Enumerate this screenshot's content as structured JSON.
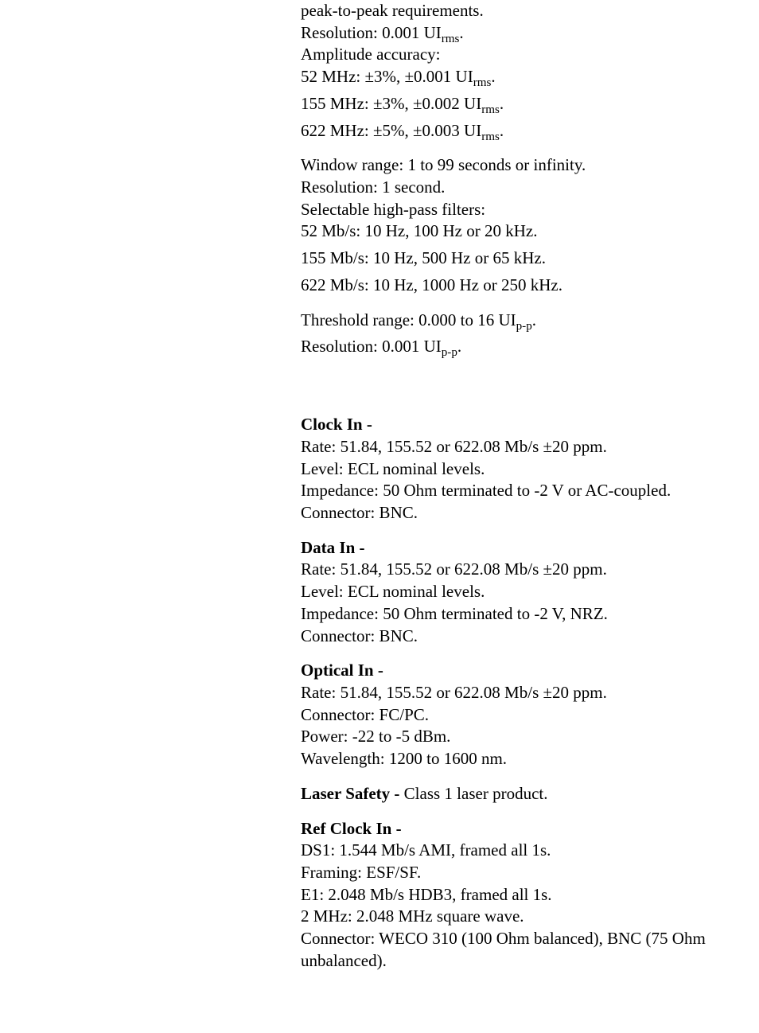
{
  "block1": {
    "l1": "peak-to-peak requirements.",
    "l2a": "Resolution: 0.001 UI",
    "l2sub": "rms",
    "l2b": ".",
    "l3": "Amplitude accuracy:",
    "l4a": "52 MHz: ±3%, ±0.001 UI",
    "l4sub": "rms",
    "l4b": ".",
    "l5a": "155 MHz: ±3%, ±0.002 UI",
    "l5sub": "rms",
    "l5b": ".",
    "l6a": "622 MHz: ±5%, ±0.003 UI",
    "l6sub": "rms",
    "l6b": "."
  },
  "block2": {
    "l1": "Window range: 1 to 99 seconds or infinity.",
    "l2": "Resolution: 1 second.",
    "l3": "Selectable high-pass filters:",
    "l4": "52 Mb/s: 10 Hz, 100 Hz or 20 kHz.",
    "l5": "155 Mb/s: 10 Hz, 500 Hz or 65 kHz.",
    "l6": "622 Mb/s: 10 Hz, 1000 Hz or 250 kHz."
  },
  "block3": {
    "l1a": "Threshold range: 0.000 to 16 UI",
    "l1sub": "p-p",
    "l1b": ".",
    "l2a": "Resolution: 0.001 UI",
    "l2sub": "p-p",
    "l2b": "."
  },
  "clockIn": {
    "title": "Clock In - ",
    "l1": "Rate: 51.84, 155.52 or 622.08 Mb/s ±20 ppm.",
    "l2": "Level: ECL nominal levels.",
    "l3": "Impedance: 50 Ohm terminated to -2 V or AC-coupled.",
    "l4": "Connector: BNC."
  },
  "dataIn": {
    "title": "Data In - ",
    "l1": "Rate: 51.84, 155.52 or 622.08 Mb/s ±20 ppm.",
    "l2": "Level: ECL nominal levels.",
    "l3": "Impedance: 50 Ohm terminated to -2 V, NRZ.",
    "l4": "Connector: BNC."
  },
  "opticalIn": {
    "title": "Optical In - ",
    "l1": "Rate: 51.84, 155.52 or 622.08 Mb/s ±20 ppm.",
    "l2": "Connector: FC/PC.",
    "l3": "Power: -22 to -5 dBm.",
    "l4": "Wavelength: 1200 to 1600 nm."
  },
  "laserSafety": {
    "title": "Laser Safety - ",
    "body": "Class 1 laser product."
  },
  "refClockIn": {
    "title": "Ref Clock In - ",
    "l1": "DS1: 1.544 Mb/s AMI, framed all 1s.",
    "l2": "Framing: ESF/SF.",
    "l3": "E1: 2.048 Mb/s HDB3, framed all 1s.",
    "l4": "2 MHz: 2.048 MHz square wave.",
    "l5": "Connector: WECO 310 (100 Ohm balanced), BNC (75 Ohm unbalanced)."
  }
}
